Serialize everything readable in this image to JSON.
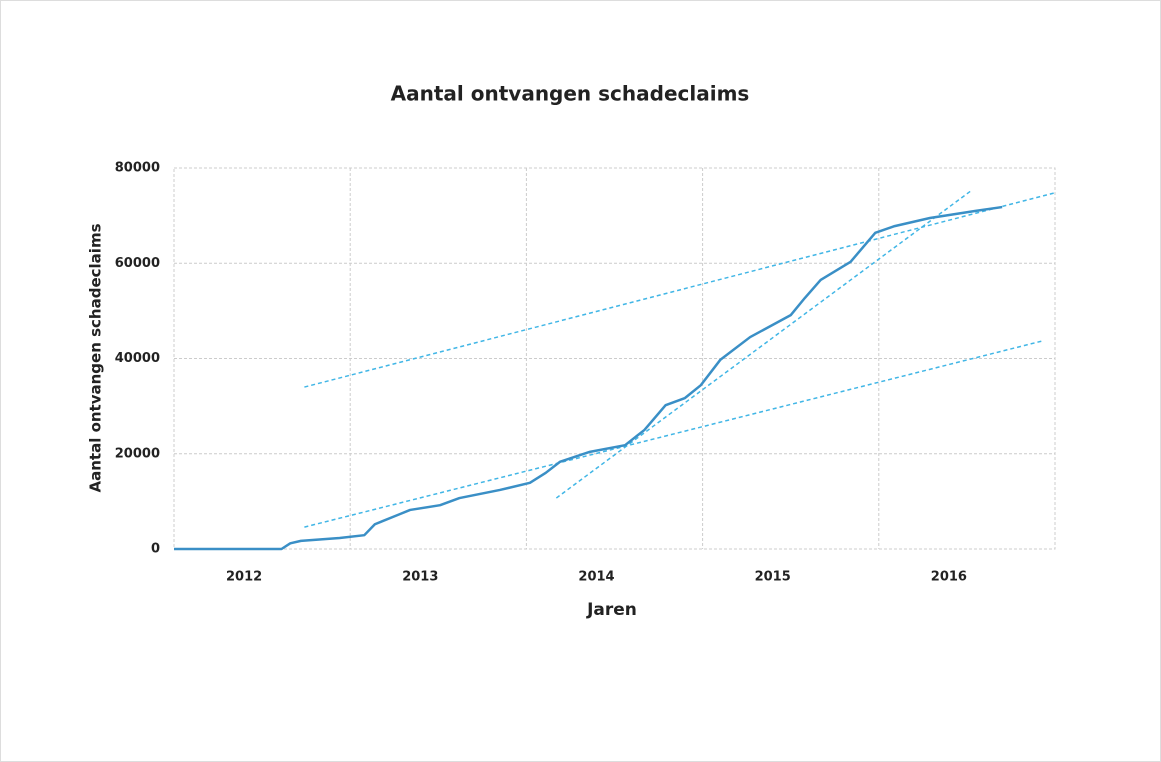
{
  "chart_data": {
    "type": "line",
    "title": "Aantal ontvangen schadeclaims",
    "x_label": "Jaren",
    "y_label": "Aantal ontvangen schadeclaims",
    "xlim": [
      2012,
      2017
    ],
    "xticks": [
      {
        "value": 2012.5,
        "label": "2012"
      },
      {
        "value": 2013.5,
        "label": "2013"
      },
      {
        "value": 2014.5,
        "label": "2014"
      },
      {
        "value": 2015.5,
        "label": "2015"
      },
      {
        "value": 2016.5,
        "label": "2016"
      }
    ],
    "xgrid": [
      2013,
      2014,
      2015,
      2016
    ],
    "ylim": [
      0,
      80000
    ],
    "yticks": [
      0,
      20000,
      40000,
      60000,
      80000
    ],
    "grid": true,
    "color": "#3a8fc6",
    "x": [
      2012.0,
      2012.61,
      2012.66,
      2012.72,
      2012.94,
      2013.08,
      2013.14,
      2013.28,
      2013.34,
      2013.51,
      2013.62,
      2013.85,
      2014.02,
      2014.11,
      2014.19,
      2014.36,
      2014.56,
      2014.67,
      2014.79,
      2014.9,
      2014.99,
      2015.1,
      2015.27,
      2015.5,
      2015.58,
      2015.67,
      2015.84,
      2015.98,
      2016.09,
      2016.29,
      2016.55,
      2016.7
    ],
    "values": [
      0,
      0,
      1200,
      1700,
      2300,
      2900,
      5200,
      7300,
      8200,
      9200,
      10700,
      12400,
      13900,
      16000,
      18300,
      20400,
      21800,
      25000,
      30200,
      31700,
      34400,
      39700,
      44500,
      49100,
      52700,
      56500,
      60300,
      66400,
      67800,
      69500,
      71000,
      71800
    ],
    "trendline_color": "#41b6e6",
    "trendlines": [
      {
        "x": [
          2012.74,
          2016.93
        ],
        "y": [
          4600,
          43700
        ]
      },
      {
        "x": [
          2012.74,
          2017.0
        ],
        "y": [
          34000,
          74800
        ]
      },
      {
        "x": [
          2014.17,
          2016.53
        ],
        "y": [
          10700,
          75400
        ]
      }
    ]
  }
}
